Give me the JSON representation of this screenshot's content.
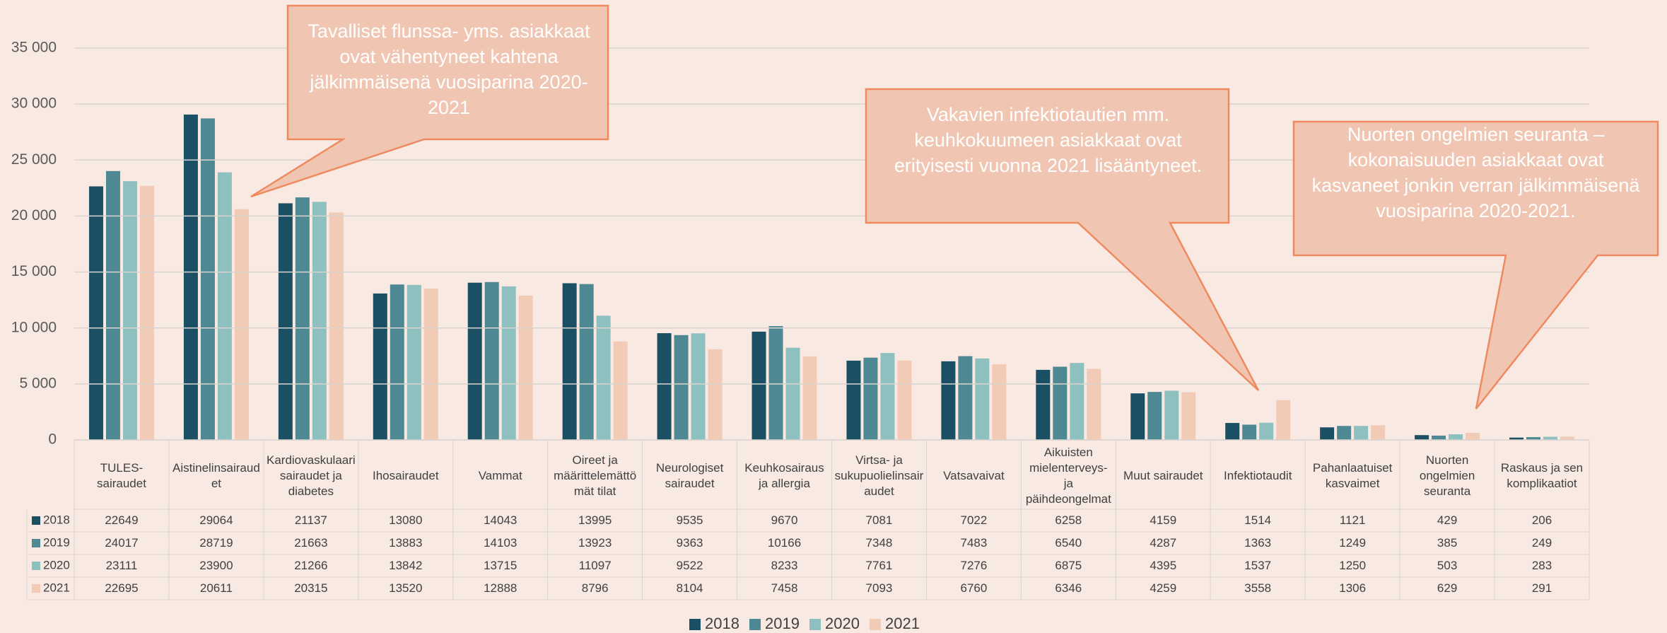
{
  "chart_data": {
    "type": "bar",
    "categories": [
      "TULES-sairaudet",
      "Aistinelinsairaudet",
      "Kardiovaskulaarisairaudet ja diabetes",
      "Ihosairaudet",
      "Vammat",
      "Oireet ja määrittelemättömät tilat",
      "Neurologiset sairaudet",
      "Keuhkosairaus ja allergia",
      "Virtsa- ja sukupuolielinsairaudet",
      "Vatsavaivat",
      "Aikuisten mielenterveys- ja päihdeongelmat",
      "Muut sairaudet",
      "Infektiotaudit",
      "Pahanlaatuiset kasvaimet",
      "Nuorten ongelmien seuranta",
      "Raskaus ja sen komplikaatiot"
    ],
    "series": [
      {
        "name": "2018",
        "color": "#1b4f63",
        "values": [
          22649,
          29064,
          21137,
          13080,
          14043,
          13995,
          9535,
          9670,
          7081,
          7022,
          6258,
          4159,
          1514,
          1121,
          429,
          206
        ]
      },
      {
        "name": "2019",
        "color": "#4e8893",
        "values": [
          24017,
          28719,
          21663,
          13883,
          14103,
          13923,
          9363,
          10166,
          7348,
          7483,
          6540,
          4287,
          1363,
          1249,
          385,
          249
        ]
      },
      {
        "name": "2020",
        "color": "#8fc0c0",
        "values": [
          23111,
          23900,
          21266,
          13842,
          13715,
          11097,
          9522,
          8233,
          7761,
          7276,
          6875,
          4395,
          1537,
          1250,
          503,
          283
        ]
      },
      {
        "name": "2021",
        "color": "#f2cbb6",
        "values": [
          22695,
          20611,
          20315,
          13520,
          12888,
          8796,
          8104,
          7458,
          7093,
          6760,
          6346,
          4259,
          3558,
          1306,
          629,
          291
        ]
      }
    ],
    "ylim": [
      0,
      35000
    ],
    "yticks": [
      0,
      {
        "value": 5000,
        "label": "5 000"
      },
      {
        "value": 10000,
        "label": "10 000"
      },
      {
        "value": 15000,
        "label": "15 000"
      },
      {
        "value": 20000,
        "label": "20 000"
      },
      {
        "value": 25000,
        "label": "25 000"
      },
      {
        "value": 30000,
        "label": "30 000"
      },
      {
        "value": 35000,
        "label": "35 000"
      }
    ],
    "grid": true,
    "legend": "bottom",
    "annotations": [
      "Tavalliset flunssa- yms. asiakkaat ovat vähentyneet kahtena jälkimmäisenä vuosiparina 2020-2021",
      "Vakavien infektiotautien mm. keuhkokuumeen asiakkaat ovat erityisesti vuonna 2021 lisääntyneet.",
      "Nuorten ongelmien seuranta – kokonaisuuden asiakkaat ovat kasvaneet jonkin verran jälkimmäisenä vuosiparina 2020-2021."
    ]
  }
}
